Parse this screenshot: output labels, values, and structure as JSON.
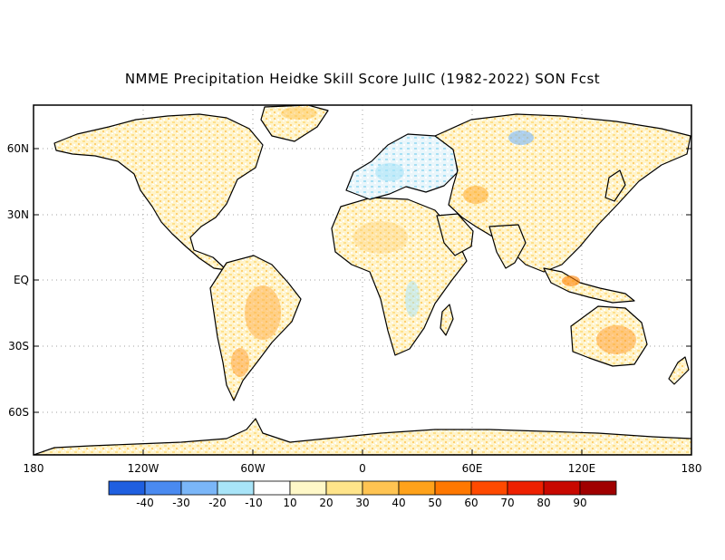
{
  "title": "NMME Precipitation Heidke Skill Score JulIC (1982-2022) SON Fcst",
  "map": {
    "lat_ticks": [
      "60N",
      "30N",
      "EQ",
      "30S",
      "60S"
    ],
    "lon_ticks": [
      "180",
      "120W",
      "60W",
      "0",
      "60E",
      "120E",
      "180"
    ]
  },
  "colorbar": {
    "colors": [
      "#1f5fe0",
      "#4a8af0",
      "#7ab6f8",
      "#a8e4f8",
      "#ffffff",
      "#fff8c8",
      "#ffe48a",
      "#ffc452",
      "#ffa21a",
      "#ff7800",
      "#ff4a00",
      "#ee2000",
      "#c80800",
      "#a00000"
    ],
    "labels": [
      "-40",
      "-30",
      "-20",
      "-10",
      "10",
      "20",
      "30",
      "40",
      "50",
      "60",
      "70",
      "80",
      "90"
    ]
  }
}
